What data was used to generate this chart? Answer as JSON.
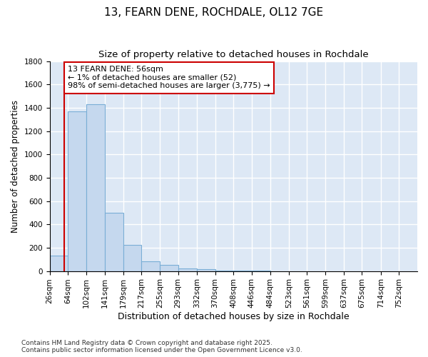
{
  "title": "13, FEARN DENE, ROCHDALE, OL12 7GE",
  "subtitle": "Size of property relative to detached houses in Rochdale",
  "xlabel": "Distribution of detached houses by size in Rochdale",
  "ylabel": "Number of detached properties",
  "bin_edges": [
    26,
    64,
    102,
    141,
    179,
    217,
    255,
    293,
    332,
    370,
    408,
    446,
    484,
    523,
    561,
    599,
    637,
    675,
    714,
    752,
    790
  ],
  "bar_heights": [
    130,
    1370,
    1430,
    500,
    225,
    85,
    50,
    25,
    15,
    5,
    2,
    1,
    0,
    0,
    0,
    0,
    0,
    0,
    0,
    0
  ],
  "bar_color": "#c5d8ee",
  "bar_edge_color": "#7aaed6",
  "property_line_x": 56,
  "property_line_color": "#cc0000",
  "annotation_text": "13 FEARN DENE: 56sqm\n← 1% of detached houses are smaller (52)\n98% of semi-detached houses are larger (3,775) →",
  "annotation_box_color": "#ffffff",
  "annotation_box_edge_color": "#cc0000",
  "ylim": [
    0,
    1800
  ],
  "yticks": [
    0,
    200,
    400,
    600,
    800,
    1000,
    1200,
    1400,
    1600,
    1800
  ],
  "bg_color": "#dde8f5",
  "grid_color": "#ffffff",
  "footnote": "Contains HM Land Registry data © Crown copyright and database right 2025.\nContains public sector information licensed under the Open Government Licence v3.0.",
  "title_fontsize": 11,
  "subtitle_fontsize": 9.5,
  "xlabel_fontsize": 9,
  "ylabel_fontsize": 8.5,
  "tick_fontsize": 7.5,
  "annotation_fontsize": 8,
  "footnote_fontsize": 6.5
}
